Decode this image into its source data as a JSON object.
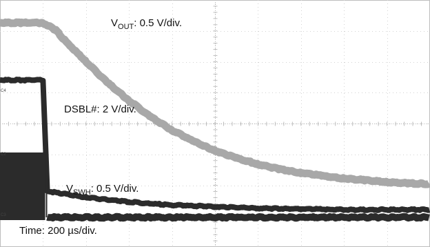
{
  "chart_data": {
    "type": "line",
    "title": "",
    "grid": true,
    "grid_divisions": {
      "x": 10,
      "y": 8
    },
    "time_scale": "Time: 200 µs/div.",
    "time_unit": "µs",
    "x_range": [
      0,
      2000
    ],
    "series": [
      {
        "name": "VOUT",
        "label_main": "V",
        "label_sub": "OUT",
        "label_rest": ": 0.5 V/div.",
        "color": "#a8a8a8",
        "points": [
          [
            0,
            0
          ],
          [
            100,
            0
          ],
          [
            200,
            0
          ],
          [
            260,
            -0.12
          ],
          [
            300,
            -0.28
          ],
          [
            400,
            -0.63
          ],
          [
            500,
            -0.97
          ],
          [
            600,
            -1.26
          ],
          [
            700,
            -1.52
          ],
          [
            800,
            -1.74
          ],
          [
            900,
            -1.92
          ],
          [
            1000,
            -2.07
          ],
          [
            1100,
            -2.19
          ],
          [
            1200,
            -2.29
          ],
          [
            1300,
            -2.37
          ],
          [
            1400,
            -2.43
          ],
          [
            1500,
            -2.48
          ],
          [
            1600,
            -2.52
          ],
          [
            1700,
            -2.55
          ],
          [
            1800,
            -2.58
          ],
          [
            1900,
            -2.6
          ],
          [
            2000,
            -2.61
          ]
        ]
      },
      {
        "name": "DSBL#",
        "label_main": "DSBL#",
        "label_sub": "",
        "label_rest": ": 2 V/div.",
        "color": "#2b2b2b",
        "points": [
          [
            0,
            0
          ],
          [
            200,
            0
          ],
          [
            220,
            -7.2
          ],
          [
            400,
            -7.6
          ],
          [
            600,
            -7.9
          ],
          [
            800,
            -8.1
          ],
          [
            1000,
            -8.2
          ],
          [
            1200,
            -8.3
          ],
          [
            1400,
            -8.35
          ],
          [
            1600,
            -8.4
          ],
          [
            2000,
            -8.4
          ]
        ]
      },
      {
        "name": "VSWH",
        "label_main": "V",
        "label_sub": "SWH",
        "label_rest": ": 0.5 V/div.",
        "color": "#2b2b2b",
        "switching_until_us": 210,
        "switching_band_v": [
          0.55,
          1.05
        ],
        "points": [
          [
            0,
            1.05
          ],
          [
            210,
            1.05
          ],
          [
            215,
            0
          ],
          [
            2000,
            0
          ]
        ]
      }
    ]
  }
}
